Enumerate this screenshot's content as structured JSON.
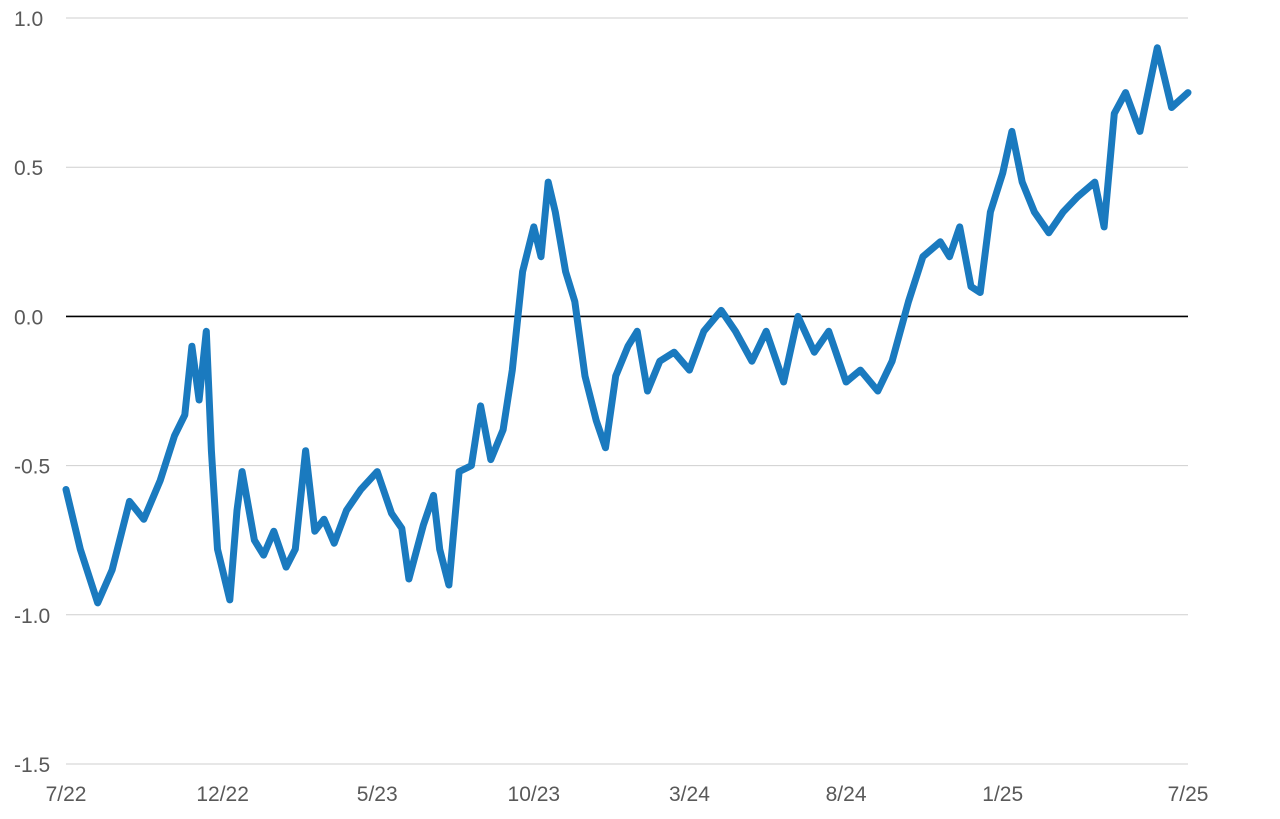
{
  "chart_data": {
    "type": "line",
    "title": "",
    "xlabel": "",
    "ylabel": "",
    "ylim": [
      -1.5,
      1.0
    ],
    "yticks": [
      -1.5,
      -1.0,
      -0.5,
      0.0,
      0.5,
      1.0
    ],
    "ytick_labels": [
      "-1.5",
      "-1.0",
      "-0.5",
      "0.0",
      "0.5",
      "1.0"
    ],
    "xlim": [
      "2022-07",
      "2025-07"
    ],
    "xticks": [
      "2022-07",
      "2022-12",
      "2023-05",
      "2023-10",
      "2024-03",
      "2024-08",
      "2025-01",
      "2025-07"
    ],
    "xtick_labels": [
      "7/22",
      "12/22",
      "5/23",
      "10/23",
      "3/24",
      "8/24",
      "1/25",
      "7/25"
    ],
    "grid": true,
    "reference_line": 0.0,
    "series": [
      {
        "color": "#1a7abf",
        "x": [
          "2022-07-01",
          "2022-07-15",
          "2022-08-01",
          "2022-08-15",
          "2022-09-01",
          "2022-09-15",
          "2022-10-01",
          "2022-10-15",
          "2022-10-25",
          "2022-11-01",
          "2022-11-08",
          "2022-11-15",
          "2022-11-20",
          "2022-11-26",
          "2022-12-01",
          "2022-12-08",
          "2022-12-15",
          "2022-12-20",
          "2023-01-01",
          "2023-01-10",
          "2023-01-20",
          "2023-02-01",
          "2023-02-10",
          "2023-02-20",
          "2023-03-01",
          "2023-03-10",
          "2023-03-20",
          "2023-04-01",
          "2023-04-15",
          "2023-05-01",
          "2023-05-15",
          "2023-05-25",
          "2023-06-01",
          "2023-06-15",
          "2023-06-25",
          "2023-07-01",
          "2023-07-10",
          "2023-07-20",
          "2023-08-01",
          "2023-08-10",
          "2023-08-20",
          "2023-09-01",
          "2023-09-10",
          "2023-09-20",
          "2023-10-01",
          "2023-10-08",
          "2023-10-15",
          "2023-10-22",
          "2023-11-01",
          "2023-11-10",
          "2023-11-20",
          "2023-12-01",
          "2023-12-10",
          "2023-12-20",
          "2024-01-01",
          "2024-01-10",
          "2024-01-20",
          "2024-02-01",
          "2024-02-15",
          "2024-03-01",
          "2024-03-15",
          "2024-04-01",
          "2024-04-15",
          "2024-05-01",
          "2024-05-15",
          "2024-06-01",
          "2024-06-15",
          "2024-07-01",
          "2024-07-15",
          "2024-08-01",
          "2024-08-15",
          "2024-09-01",
          "2024-09-15",
          "2024-10-01",
          "2024-10-15",
          "2024-11-01",
          "2024-11-10",
          "2024-11-20",
          "2024-12-01",
          "2024-12-10",
          "2024-12-20",
          "2025-01-01",
          "2025-01-10",
          "2025-01-20",
          "2025-02-01",
          "2025-02-15",
          "2025-03-01",
          "2025-03-15",
          "2025-04-01",
          "2025-04-10",
          "2025-04-20",
          "2025-05-01",
          "2025-05-15",
          "2025-06-01",
          "2025-06-15",
          "2025-07-01"
        ],
        "y": [
          -0.58,
          -0.78,
          -0.96,
          -0.85,
          -0.62,
          -0.68,
          -0.55,
          -0.4,
          -0.33,
          -0.1,
          -0.28,
          -0.05,
          -0.45,
          -0.78,
          -0.85,
          -0.95,
          -0.65,
          -0.52,
          -0.75,
          -0.8,
          -0.72,
          -0.84,
          -0.78,
          -0.45,
          -0.72,
          -0.68,
          -0.76,
          -0.65,
          -0.58,
          -0.52,
          -0.66,
          -0.71,
          -0.88,
          -0.7,
          -0.6,
          -0.78,
          -0.9,
          -0.52,
          -0.5,
          -0.3,
          -0.48,
          -0.38,
          -0.18,
          0.15,
          0.3,
          0.2,
          0.45,
          0.35,
          0.15,
          0.05,
          -0.2,
          -0.35,
          -0.44,
          -0.2,
          -0.1,
          -0.05,
          -0.25,
          -0.15,
          -0.12,
          -0.18,
          -0.05,
          0.02,
          -0.05,
          -0.15,
          -0.05,
          -0.22,
          0.0,
          -0.12,
          -0.05,
          -0.22,
          -0.18,
          -0.25,
          -0.15,
          0.05,
          0.2,
          0.25,
          0.2,
          0.3,
          0.1,
          0.08,
          0.35,
          0.48,
          0.62,
          0.45,
          0.35,
          0.28,
          0.35,
          0.4,
          0.45,
          0.3,
          0.68,
          0.75,
          0.62,
          0.9,
          0.7,
          0.75
        ]
      }
    ]
  }
}
